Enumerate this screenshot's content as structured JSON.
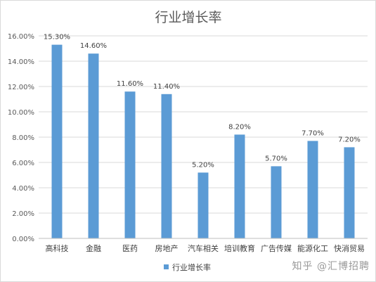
{
  "chart_data": {
    "type": "bar",
    "title": "行业增长率",
    "categories": [
      "高科技",
      "金融",
      "医药",
      "房地产",
      "汽车相关",
      "培训教育",
      "广告传媒",
      "能源化工",
      "快消贸易"
    ],
    "series": [
      {
        "name": "行业增长率",
        "values": [
          15.3,
          14.6,
          11.6,
          11.4,
          5.2,
          8.2,
          5.7,
          7.7,
          7.2
        ],
        "labels": [
          "15.30%",
          "14.60%",
          "11.60%",
          "11.40%",
          "5.20%",
          "8.20%",
          "5.70%",
          "7.70%",
          "7.20%"
        ]
      }
    ],
    "y_ticks": [
      "0.00%",
      "2.00%",
      "4.00%",
      "6.00%",
      "8.00%",
      "10.00%",
      "12.00%",
      "14.00%",
      "16.00%"
    ],
    "ylim": [
      0,
      16
    ],
    "grid": true,
    "legend_position": "bottom",
    "bar_color": "#5b9bd5"
  },
  "watermark": "知乎 @汇博招聘"
}
